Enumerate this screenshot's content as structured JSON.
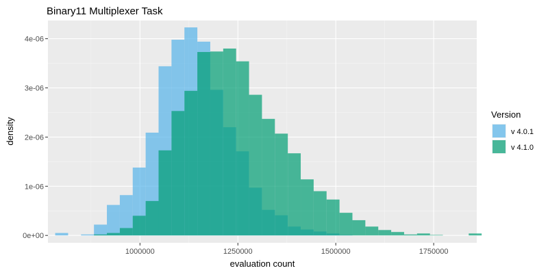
{
  "chart_data": {
    "type": "histogram",
    "title": "Binary11 Multiplexer Task",
    "xlabel": "evaluation count",
    "ylabel": "density",
    "xlim": [
      765000,
      1860000
    ],
    "ylim": [
      -1.5e-07,
      4.37e-06
    ],
    "x_ticks": [
      {
        "value": 1000000,
        "label": "1000000"
      },
      {
        "value": 1250000,
        "label": "1250000"
      },
      {
        "value": 1500000,
        "label": "1500000"
      },
      {
        "value": 1750000,
        "label": "1750000"
      }
    ],
    "y_ticks": [
      {
        "value": 0,
        "label": "0e+00"
      },
      {
        "value": 1e-06,
        "label": "1e-06"
      },
      {
        "value": 2e-06,
        "label": "2e-06"
      },
      {
        "value": 3e-06,
        "label": "3e-06"
      },
      {
        "value": 4e-06,
        "label": "4e-06"
      }
    ],
    "bin_start": 783500,
    "bin_width": 33000,
    "grid": true,
    "legend_position": "right",
    "legend_title": "Version",
    "series": [
      {
        "name": "v 4.0.1",
        "color": "#56B4E9",
        "opacity": 0.7,
        "density": [
          5e-08,
          0,
          2e-08,
          2.2e-07,
          6.2e-07,
          8.2e-07,
          1.38e-06,
          2.09e-06,
          3.44e-06,
          3.98e-06,
          4.23e-06,
          3.94e-06,
          2.96e-06,
          2.2e-06,
          1.71e-06,
          9.7e-07,
          5.2e-07,
          4.1e-07,
          1.8e-07,
          1.2e-07,
          8e-08,
          4e-08,
          1e-08,
          0,
          0,
          0,
          0,
          0,
          0,
          0,
          0,
          0,
          0
        ]
      },
      {
        "name": "v 4.1.0",
        "color": "#009E73",
        "opacity": 0.7,
        "density": [
          0,
          0,
          0,
          2e-08,
          5e-08,
          1.5e-07,
          4e-07,
          7e-07,
          1.73e-06,
          2.53e-06,
          2.94e-06,
          3.73e-06,
          3.74e-06,
          3.8e-06,
          3.54e-06,
          2.86e-06,
          2.37e-06,
          2.07e-06,
          1.67e-06,
          1.14e-06,
          9e-07,
          7.3e-07,
          4.6e-07,
          3.1e-07,
          1.8e-07,
          1.1e-07,
          7e-08,
          2e-08,
          4e-08,
          1e-08,
          0,
          0,
          4e-08
        ]
      }
    ]
  }
}
